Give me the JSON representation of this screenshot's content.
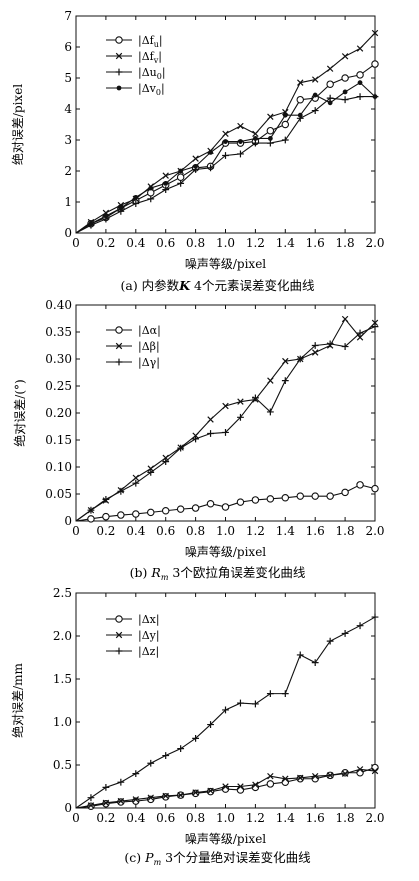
{
  "chart_data": [
    {
      "type": "line",
      "caption": "(a) 内参数K 4个元素误差变化曲线",
      "xlabel": "噪声等级/pixel",
      "ylabel": "绝对误差/pixel",
      "xlim": [
        0,
        2.0
      ],
      "ylim": [
        0,
        7
      ],
      "xticks": [
        0,
        0.2,
        0.4,
        0.6,
        0.8,
        1.0,
        1.2,
        1.4,
        1.6,
        1.8,
        2.0
      ],
      "xtick_labels": [
        "0",
        "0.2",
        "0.4",
        "0.6",
        "0.8",
        "1.0",
        "1.2",
        "1.4",
        "1.6",
        "1.8",
        "2.0"
      ],
      "yticks": [
        0,
        1,
        2,
        3,
        4,
        5,
        6,
        7
      ],
      "ytick_labels": [
        "0",
        "1",
        "2",
        "3",
        "4",
        "5",
        "6",
        "7"
      ],
      "legend_position": "top-left",
      "x": [
        0,
        0.1,
        0.2,
        0.3,
        0.4,
        0.5,
        0.6,
        0.7,
        0.8,
        0.9,
        1.0,
        1.1,
        1.2,
        1.3,
        1.4,
        1.5,
        1.6,
        1.7,
        1.8,
        1.9,
        2.0
      ],
      "series": [
        {
          "name": "|Δf_u|",
          "marker": "circle",
          "values": [
            0,
            0.3,
            0.5,
            0.8,
            1.05,
            1.3,
            1.55,
            1.8,
            2.1,
            2.15,
            2.9,
            2.9,
            2.95,
            3.3,
            3.5,
            4.3,
            4.35,
            4.8,
            5.0,
            5.1,
            5.45
          ]
        },
        {
          "name": "|Δf_v|",
          "marker": "x",
          "values": [
            0,
            0.35,
            0.65,
            0.9,
            1.1,
            1.5,
            1.85,
            2.0,
            2.4,
            2.65,
            3.2,
            3.45,
            3.2,
            3.75,
            3.9,
            4.85,
            4.95,
            5.3,
            5.7,
            5.95,
            6.45
          ]
        },
        {
          "name": "|Δu_0|",
          "marker": "plus",
          "values": [
            0,
            0.25,
            0.45,
            0.7,
            0.95,
            1.1,
            1.4,
            1.6,
            2.05,
            2.1,
            2.5,
            2.55,
            2.9,
            2.9,
            3.0,
            3.7,
            3.95,
            4.35,
            4.3,
            4.4,
            4.4
          ]
        },
        {
          "name": "|Δv_0|",
          "marker": "dot",
          "values": [
            0,
            0.3,
            0.55,
            0.8,
            1.15,
            1.45,
            1.6,
            2.0,
            2.15,
            2.6,
            2.95,
            2.95,
            3.05,
            3.05,
            3.8,
            3.8,
            4.45,
            4.2,
            4.55,
            4.85,
            4.4
          ]
        }
      ]
    },
    {
      "type": "line",
      "caption": "(b) R_m 3个欧拉角误差变化曲线",
      "xlabel": "噪声等级/pixel",
      "ylabel": "绝对误差/(°)",
      "xlim": [
        0,
        2.0
      ],
      "ylim": [
        0,
        0.4
      ],
      "xticks": [
        0,
        0.2,
        0.4,
        0.6,
        0.8,
        1.0,
        1.2,
        1.4,
        1.6,
        1.8,
        2.0
      ],
      "xtick_labels": [
        "0",
        "0.2",
        "0.4",
        "0.6",
        "0.8",
        "1.0",
        "1.2",
        "1.4",
        "1.6",
        "1.8",
        "2.0"
      ],
      "yticks": [
        0,
        0.05,
        0.1,
        0.15,
        0.2,
        0.25,
        0.3,
        0.35,
        0.4
      ],
      "ytick_labels": [
        "0",
        "0.05",
        "0.10",
        "0.15",
        "0.20",
        "0.25",
        "0.30",
        "0.35",
        "0.40"
      ],
      "legend_position": "top-left",
      "x": [
        0,
        0.1,
        0.2,
        0.3,
        0.4,
        0.5,
        0.6,
        0.7,
        0.8,
        0.9,
        1.0,
        1.1,
        1.2,
        1.3,
        1.4,
        1.5,
        1.6,
        1.7,
        1.8,
        1.9,
        2.0
      ],
      "series": [
        {
          "name": "|Δα|",
          "marker": "circle",
          "values": [
            0,
            0.004,
            0.008,
            0.011,
            0.013,
            0.016,
            0.019,
            0.022,
            0.024,
            0.032,
            0.026,
            0.035,
            0.039,
            0.041,
            0.043,
            0.046,
            0.046,
            0.046,
            0.053,
            0.067,
            0.06
          ]
        },
        {
          "name": "|Δβ|",
          "marker": "x",
          "values": [
            0,
            0.02,
            0.038,
            0.057,
            0.08,
            0.097,
            0.117,
            0.136,
            0.158,
            0.188,
            0.213,
            0.221,
            0.225,
            0.26,
            0.296,
            0.3,
            0.312,
            0.325,
            0.374,
            0.34,
            0.367
          ]
        },
        {
          "name": "|Δγ|",
          "marker": "plus",
          "values": [
            0,
            0.02,
            0.04,
            0.055,
            0.07,
            0.09,
            0.11,
            0.135,
            0.152,
            0.162,
            0.164,
            0.192,
            0.228,
            0.202,
            0.26,
            0.3,
            0.325,
            0.328,
            0.323,
            0.348,
            0.36
          ]
        }
      ]
    },
    {
      "type": "line",
      "caption": "(c) P_m 3个分量绝对误差变化曲线",
      "xlabel": "噪声等级/pixel",
      "ylabel": "绝对误差/mm",
      "xlim": [
        0,
        2.0
      ],
      "ylim": [
        0,
        2.5
      ],
      "xticks": [
        0,
        0.2,
        0.4,
        0.6,
        0.8,
        1.0,
        1.2,
        1.4,
        1.6,
        1.8,
        2.0
      ],
      "xtick_labels": [
        "0",
        "0.2",
        "0.4",
        "0.6",
        "0.8",
        "1.0",
        "1.2",
        "1.4",
        "1.6",
        "1.8",
        "2.0"
      ],
      "yticks": [
        0,
        0.5,
        1.0,
        1.5,
        2.0,
        2.5
      ],
      "ytick_labels": [
        "0",
        "0.5",
        "1.0",
        "1.5",
        "2.0",
        "2.5"
      ],
      "legend_position": "top-left",
      "x": [
        0,
        0.1,
        0.2,
        0.3,
        0.4,
        0.5,
        0.6,
        0.7,
        0.8,
        0.9,
        1.0,
        1.1,
        1.2,
        1.3,
        1.4,
        1.5,
        1.6,
        1.7,
        1.8,
        1.9,
        2.0
      ],
      "series": [
        {
          "name": "|Δx|",
          "marker": "circle",
          "values": [
            0,
            0.02,
            0.05,
            0.07,
            0.08,
            0.1,
            0.13,
            0.15,
            0.17,
            0.19,
            0.22,
            0.21,
            0.24,
            0.28,
            0.3,
            0.34,
            0.34,
            0.38,
            0.41,
            0.41,
            0.47
          ]
        },
        {
          "name": "|Δy|",
          "marker": "x",
          "values": [
            0,
            0.03,
            0.06,
            0.08,
            0.1,
            0.12,
            0.14,
            0.15,
            0.18,
            0.2,
            0.25,
            0.25,
            0.27,
            0.37,
            0.34,
            0.35,
            0.37,
            0.38,
            0.4,
            0.45,
            0.43
          ]
        },
        {
          "name": "|Δz|",
          "marker": "plus",
          "values": [
            0,
            0.12,
            0.24,
            0.3,
            0.4,
            0.52,
            0.61,
            0.69,
            0.81,
            0.97,
            1.14,
            1.22,
            1.21,
            1.33,
            1.33,
            1.78,
            1.69,
            1.94,
            2.03,
            2.12,
            2.22
          ]
        }
      ]
    }
  ]
}
